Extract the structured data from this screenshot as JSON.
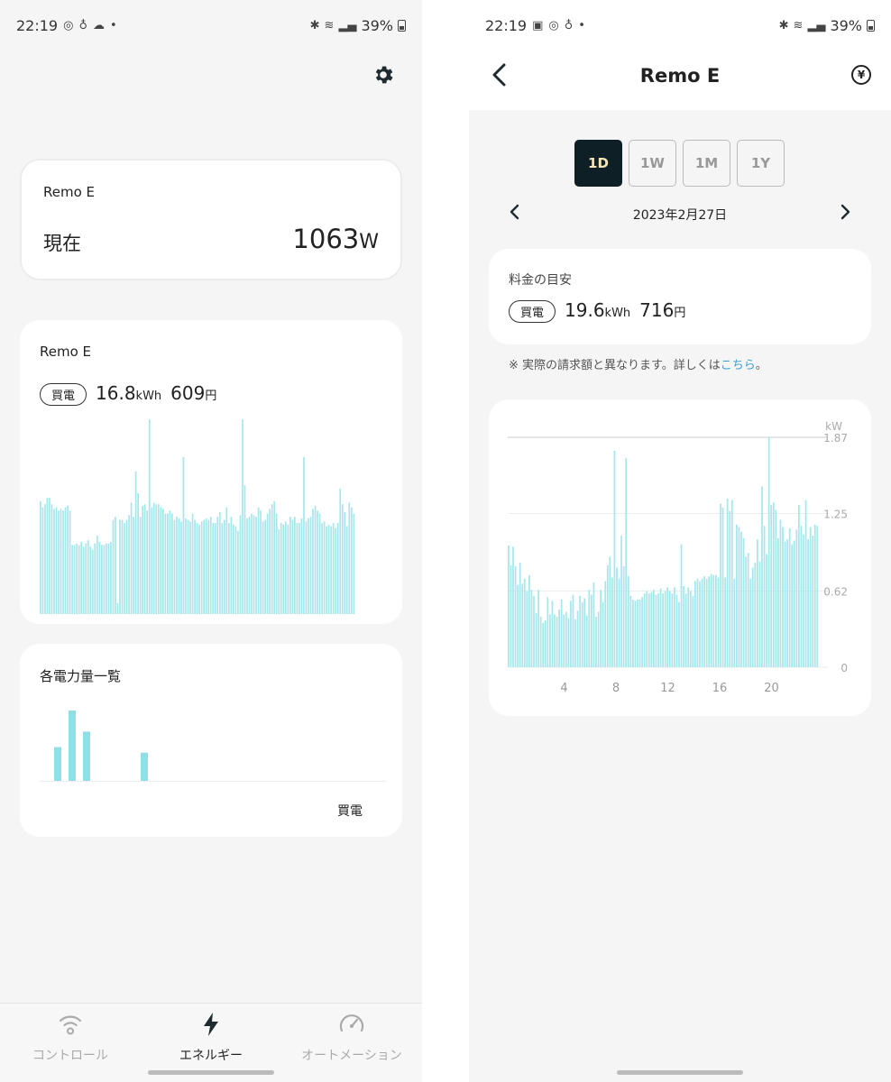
{
  "status_bar": {
    "time": "22:19",
    "battery": "39%"
  },
  "left": {
    "now_card": {
      "device": "Remo E",
      "label": "現在",
      "value": "1063",
      "unit": "W"
    },
    "usage_card": {
      "device": "Remo E",
      "badge": "買電",
      "kwh": "16.8",
      "kwh_unit": "kWh",
      "yen": "609",
      "yen_unit": "円"
    },
    "appliance_card": {
      "title": "各電力量一覧",
      "label": "買電"
    },
    "nav": [
      {
        "label": "コントロール",
        "icon": "wifi-icon"
      },
      {
        "label": "エネルギー",
        "icon": "lightning-icon"
      },
      {
        "label": "オートメーション",
        "icon": "gauge-icon"
      }
    ]
  },
  "right": {
    "title": "Remo E",
    "tabs": [
      "1D",
      "1W",
      "1M",
      "1Y"
    ],
    "active_tab": "1D",
    "date": "2023年2月27日",
    "cost_card": {
      "title": "料金の目安",
      "badge": "買電",
      "kwh": "19.6",
      "kwh_unit": "kWh",
      "yen": "716",
      "yen_unit": "円"
    },
    "note_prefix": "※ 実際の請求額と異なります。詳しくは",
    "note_link": "こちら",
    "note_suffix": "。"
  },
  "colors": {
    "bar": "#a6e7ec",
    "bar_strong": "#8fdfe6",
    "dark": "#0e1f26",
    "link": "#3a9fd0"
  },
  "chart_data": [
    {
      "type": "bar",
      "title": "",
      "xlabel": "",
      "ylabel": "",
      "series": [
        {
          "values": [
            0.72,
            0.68,
            0.7,
            0.74,
            0.74,
            0.7,
            0.67,
            0.68,
            0.66,
            0.67,
            0.66,
            0.68,
            0.69,
            0.66,
            0.44,
            0.44,
            0.45,
            0.44,
            0.46,
            0.43,
            0.45,
            0.47,
            0.43,
            0.41,
            0.45,
            0.5,
            0.46,
            0.44,
            0.44,
            0.45,
            0.45,
            0.46,
            0.6,
            0.62,
            0.07,
            0.6,
            0.6,
            0.58,
            0.6,
            0.63,
            0.71,
            0.62,
            0.91,
            0.77,
            0.62,
            0.69,
            0.7,
            0.66,
            1.35,
            0.68,
            0.71,
            0.7,
            0.7,
            0.68,
            0.67,
            0.64,
            0.64,
            0.66,
            0.64,
            0.6,
            0.62,
            0.61,
            0.59,
            1.0,
            0.61,
            0.6,
            0.59,
            0.64,
            0.6,
            0.58,
            0.57,
            0.59,
            0.6,
            0.61,
            0.6,
            0.62,
            0.58,
            0.58,
            0.62,
            0.65,
            0.58,
            0.6,
            0.68,
            0.58,
            0.62,
            0.57,
            0.56,
            0.53,
            0.63,
            1.27,
            0.82,
            0.61,
            0.62,
            0.64,
            0.63,
            0.62,
            0.68,
            0.66,
            0.59,
            0.6,
            0.64,
            0.67,
            0.7,
            0.72,
            0.64,
            0.54,
            0.58,
            0.57,
            0.59,
            0.57,
            0.62,
            0.6,
            0.62,
            0.58,
            0.58,
            0.61,
            1.0,
            0.59,
            0.61,
            0.62,
            0.67,
            0.69,
            0.66,
            0.64,
            0.58,
            0.59,
            0.56,
            0.57,
            0.56,
            0.58,
            0.55,
            0.58,
            0.8,
            0.7,
            0.65,
            0.56,
            0.71,
            0.68,
            0.64
          ]
        }
      ]
    },
    {
      "type": "bar",
      "title": "",
      "xlabel": "",
      "ylabel": "",
      "series": [
        {
          "values": [
            0.48,
            1.0,
            0.7,
            0,
            0,
            0,
            0.4
          ]
        }
      ]
    },
    {
      "type": "bar",
      "title": "",
      "xlabel": "",
      "ylabel": "kW",
      "x_ticks": [
        "4",
        "8",
        "12",
        "16",
        "20"
      ],
      "y_ticks": [
        "0",
        "0.62",
        "1.25",
        "1.87"
      ],
      "ylim": [
        0,
        1.87
      ],
      "grid": true,
      "series": [
        {
          "values": [
            0.99,
            0.83,
            0.98,
            0.82,
            0.67,
            0.85,
            0.68,
            0.72,
            0.62,
            0.75,
            0.63,
            0.58,
            0.44,
            0.63,
            0.41,
            0.36,
            0.38,
            0.57,
            0.43,
            0.54,
            0.43,
            0.41,
            0.47,
            0.55,
            0.43,
            0.45,
            0.4,
            0.54,
            0.59,
            0.39,
            0.46,
            0.58,
            0.53,
            0.56,
            0.42,
            0.63,
            0.59,
            0.69,
            0.41,
            0.45,
            0.63,
            0.53,
            0.7,
            0.83,
            0.9,
            0.73,
            1.76,
            0.81,
            0.72,
            1.07,
            0.82,
            1.7,
            0.74,
            0.58,
            0.55,
            0.54,
            0.55,
            0.55,
            0.57,
            0.6,
            0.62,
            0.6,
            0.61,
            0.63,
            0.59,
            0.6,
            0.64,
            0.6,
            0.62,
            0.65,
            0.62,
            0.6,
            0.65,
            0.59,
            0.53,
            1.0,
            0.66,
            0.6,
            0.65,
            0.62,
            0.58,
            0.7,
            0.72,
            0.7,
            0.72,
            0.74,
            0.72,
            0.74,
            0.76,
            0.75,
            0.75,
            0.73,
            1.33,
            1.3,
            0.73,
            1.37,
            1.27,
            1.36,
            0.72,
            1.16,
            1.14,
            1.1,
            1.05,
            0.9,
            0.93,
            0.72,
            0.81,
            0.85,
            1.04,
            0.86,
            1.47,
            1.15,
            0.92,
            1.87,
            1.32,
            1.34,
            1.28,
            1.05,
            1.2,
            1.14,
            1.02,
            1.04,
            1.13,
            1.0,
            1.03,
            1.12,
            1.32,
            1.15,
            1.08,
            1.36,
            1.04,
            1.14,
            1.07,
            1.16,
            1.15
          ]
        }
      ]
    }
  ]
}
